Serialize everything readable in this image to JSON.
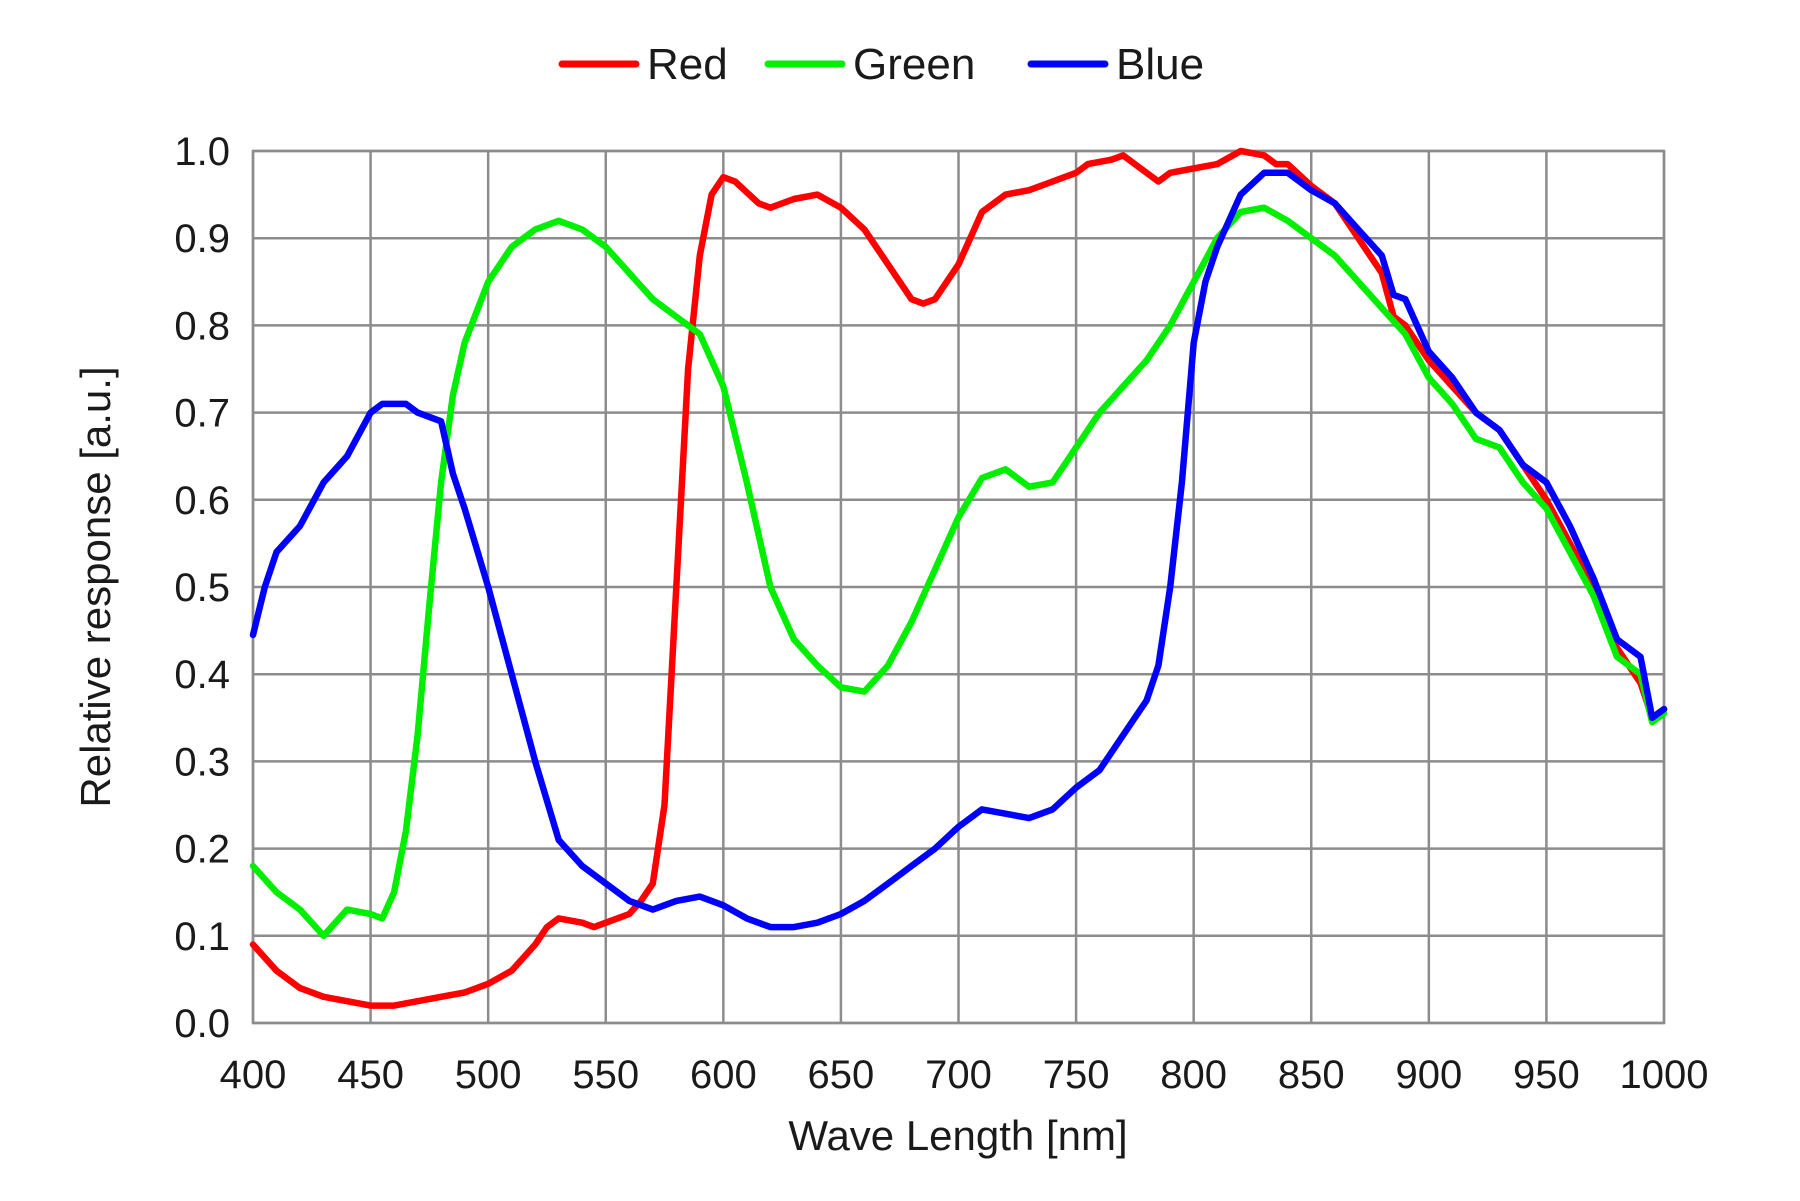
{
  "chart_data": {
    "type": "line",
    "xlabel": "Wave Length [nm]",
    "ylabel": "Relative response [a.u.]",
    "xlim": [
      400,
      1000
    ],
    "ylim": [
      0,
      1
    ],
    "x_ticks": [
      "400",
      "450",
      "500",
      "550",
      "600",
      "650",
      "700",
      "750",
      "800",
      "850",
      "900",
      "950",
      "1000"
    ],
    "y_ticks": [
      "0.0",
      "0.1",
      "0.2",
      "0.3",
      "0.4",
      "0.5",
      "0.6",
      "0.7",
      "0.8",
      "0.9",
      "1.0"
    ],
    "grid": true,
    "legend_position": "top-center",
    "series": [
      {
        "name": "Red",
        "color": "#ff0000",
        "points": [
          [
            400,
            0.09
          ],
          [
            410,
            0.06
          ],
          [
            420,
            0.04
          ],
          [
            430,
            0.03
          ],
          [
            440,
            0.025
          ],
          [
            450,
            0.02
          ],
          [
            460,
            0.02
          ],
          [
            470,
            0.025
          ],
          [
            480,
            0.03
          ],
          [
            490,
            0.035
          ],
          [
            500,
            0.045
          ],
          [
            510,
            0.06
          ],
          [
            520,
            0.09
          ],
          [
            525,
            0.11
          ],
          [
            530,
            0.12
          ],
          [
            540,
            0.115
          ],
          [
            545,
            0.11
          ],
          [
            550,
            0.115
          ],
          [
            560,
            0.125
          ],
          [
            565,
            0.14
          ],
          [
            570,
            0.16
          ],
          [
            575,
            0.25
          ],
          [
            580,
            0.5
          ],
          [
            585,
            0.75
          ],
          [
            590,
            0.88
          ],
          [
            595,
            0.95
          ],
          [
            600,
            0.97
          ],
          [
            605,
            0.965
          ],
          [
            615,
            0.94
          ],
          [
            620,
            0.935
          ],
          [
            630,
            0.945
          ],
          [
            640,
            0.95
          ],
          [
            650,
            0.935
          ],
          [
            660,
            0.91
          ],
          [
            670,
            0.87
          ],
          [
            680,
            0.83
          ],
          [
            685,
            0.825
          ],
          [
            690,
            0.83
          ],
          [
            700,
            0.87
          ],
          [
            710,
            0.93
          ],
          [
            720,
            0.95
          ],
          [
            730,
            0.955
          ],
          [
            740,
            0.965
          ],
          [
            750,
            0.975
          ],
          [
            755,
            0.985
          ],
          [
            765,
            0.99
          ],
          [
            770,
            0.995
          ],
          [
            780,
            0.975
          ],
          [
            785,
            0.965
          ],
          [
            790,
            0.975
          ],
          [
            800,
            0.98
          ],
          [
            810,
            0.985
          ],
          [
            820,
            1.0
          ],
          [
            830,
            0.995
          ],
          [
            835,
            0.985
          ],
          [
            840,
            0.985
          ],
          [
            850,
            0.96
          ],
          [
            860,
            0.94
          ],
          [
            870,
            0.9
          ],
          [
            880,
            0.86
          ],
          [
            885,
            0.81
          ],
          [
            890,
            0.8
          ],
          [
            900,
            0.76
          ],
          [
            910,
            0.73
          ],
          [
            920,
            0.7
          ],
          [
            930,
            0.68
          ],
          [
            940,
            0.64
          ],
          [
            950,
            0.6
          ],
          [
            960,
            0.55
          ],
          [
            970,
            0.5
          ],
          [
            980,
            0.43
          ],
          [
            990,
            0.39
          ],
          [
            995,
            0.35
          ],
          [
            1000,
            0.36
          ]
        ]
      },
      {
        "name": "Green",
        "color": "#00ee00",
        "points": [
          [
            400,
            0.18
          ],
          [
            410,
            0.15
          ],
          [
            420,
            0.13
          ],
          [
            430,
            0.1
          ],
          [
            440,
            0.13
          ],
          [
            450,
            0.125
          ],
          [
            455,
            0.12
          ],
          [
            460,
            0.15
          ],
          [
            465,
            0.22
          ],
          [
            470,
            0.33
          ],
          [
            475,
            0.48
          ],
          [
            480,
            0.62
          ],
          [
            485,
            0.72
          ],
          [
            490,
            0.78
          ],
          [
            500,
            0.85
          ],
          [
            510,
            0.89
          ],
          [
            520,
            0.91
          ],
          [
            530,
            0.92
          ],
          [
            540,
            0.91
          ],
          [
            550,
            0.89
          ],
          [
            560,
            0.86
          ],
          [
            570,
            0.83
          ],
          [
            580,
            0.81
          ],
          [
            590,
            0.79
          ],
          [
            600,
            0.73
          ],
          [
            610,
            0.62
          ],
          [
            620,
            0.5
          ],
          [
            630,
            0.44
          ],
          [
            640,
            0.41
          ],
          [
            650,
            0.385
          ],
          [
            660,
            0.38
          ],
          [
            670,
            0.41
          ],
          [
            680,
            0.46
          ],
          [
            690,
            0.52
          ],
          [
            700,
            0.58
          ],
          [
            710,
            0.625
          ],
          [
            720,
            0.635
          ],
          [
            730,
            0.615
          ],
          [
            740,
            0.62
          ],
          [
            750,
            0.66
          ],
          [
            760,
            0.7
          ],
          [
            770,
            0.73
          ],
          [
            780,
            0.76
          ],
          [
            790,
            0.8
          ],
          [
            800,
            0.85
          ],
          [
            810,
            0.9
          ],
          [
            820,
            0.93
          ],
          [
            830,
            0.935
          ],
          [
            840,
            0.92
          ],
          [
            850,
            0.9
          ],
          [
            860,
            0.88
          ],
          [
            870,
            0.85
          ],
          [
            880,
            0.82
          ],
          [
            890,
            0.79
          ],
          [
            900,
            0.74
          ],
          [
            910,
            0.71
          ],
          [
            920,
            0.67
          ],
          [
            930,
            0.66
          ],
          [
            940,
            0.62
          ],
          [
            950,
            0.59
          ],
          [
            960,
            0.54
          ],
          [
            970,
            0.49
          ],
          [
            980,
            0.42
          ],
          [
            990,
            0.4
          ],
          [
            995,
            0.345
          ],
          [
            1000,
            0.355
          ]
        ]
      },
      {
        "name": "Blue",
        "color": "#0000ff",
        "points": [
          [
            400,
            0.445
          ],
          [
            405,
            0.5
          ],
          [
            410,
            0.54
          ],
          [
            420,
            0.57
          ],
          [
            430,
            0.62
          ],
          [
            440,
            0.65
          ],
          [
            450,
            0.7
          ],
          [
            455,
            0.71
          ],
          [
            465,
            0.71
          ],
          [
            470,
            0.7
          ],
          [
            480,
            0.69
          ],
          [
            485,
            0.63
          ],
          [
            490,
            0.59
          ],
          [
            500,
            0.5
          ],
          [
            510,
            0.4
          ],
          [
            520,
            0.3
          ],
          [
            530,
            0.21
          ],
          [
            540,
            0.18
          ],
          [
            550,
            0.16
          ],
          [
            560,
            0.14
          ],
          [
            570,
            0.13
          ],
          [
            580,
            0.14
          ],
          [
            590,
            0.145
          ],
          [
            600,
            0.135
          ],
          [
            610,
            0.12
          ],
          [
            620,
            0.11
          ],
          [
            630,
            0.11
          ],
          [
            640,
            0.115
          ],
          [
            650,
            0.125
          ],
          [
            660,
            0.14
          ],
          [
            670,
            0.16
          ],
          [
            680,
            0.18
          ],
          [
            690,
            0.2
          ],
          [
            700,
            0.225
          ],
          [
            710,
            0.245
          ],
          [
            720,
            0.24
          ],
          [
            730,
            0.235
          ],
          [
            740,
            0.245
          ],
          [
            750,
            0.27
          ],
          [
            760,
            0.29
          ],
          [
            770,
            0.33
          ],
          [
            780,
            0.37
          ],
          [
            785,
            0.41
          ],
          [
            790,
            0.5
          ],
          [
            795,
            0.62
          ],
          [
            800,
            0.78
          ],
          [
            805,
            0.85
          ],
          [
            810,
            0.89
          ],
          [
            820,
            0.95
          ],
          [
            830,
            0.975
          ],
          [
            840,
            0.975
          ],
          [
            850,
            0.955
          ],
          [
            860,
            0.94
          ],
          [
            870,
            0.91
          ],
          [
            880,
            0.88
          ],
          [
            885,
            0.835
          ],
          [
            890,
            0.83
          ],
          [
            900,
            0.77
          ],
          [
            910,
            0.74
          ],
          [
            920,
            0.7
          ],
          [
            930,
            0.68
          ],
          [
            940,
            0.64
          ],
          [
            950,
            0.62
          ],
          [
            960,
            0.57
          ],
          [
            970,
            0.51
          ],
          [
            980,
            0.44
          ],
          [
            990,
            0.42
          ],
          [
            995,
            0.35
          ],
          [
            1000,
            0.36
          ]
        ]
      }
    ]
  }
}
